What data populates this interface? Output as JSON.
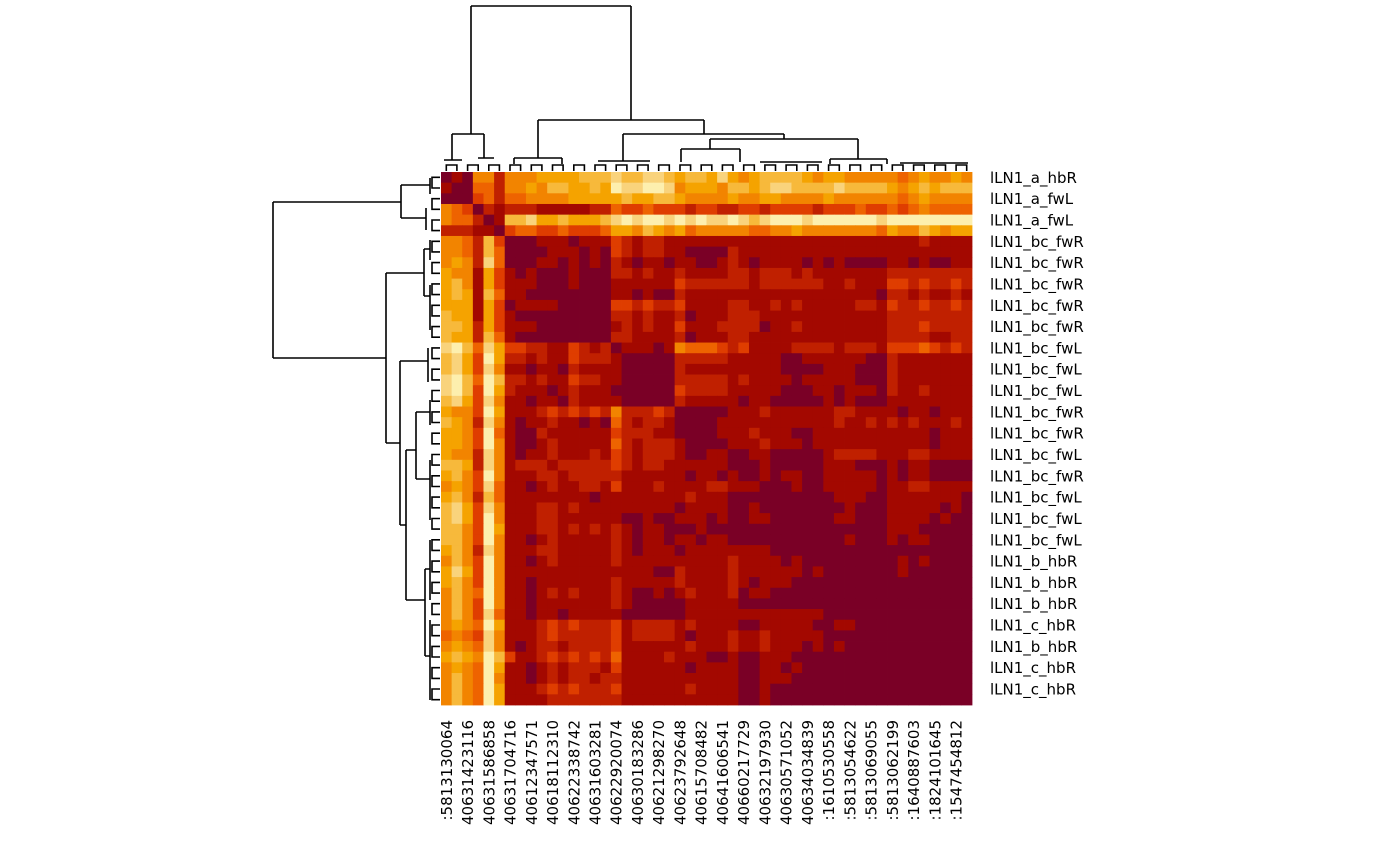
{
  "chart_data": {
    "type": "heatmap",
    "title": "",
    "row_labels": [
      "lLN1_a_hbR",
      "lLN1_a_fwL",
      "lLN1_a_fwL",
      "lLN1_bc_fwR",
      "lLN1_bc_fwR",
      "lLN1_bc_fwR",
      "lLN1_bc_fwR",
      "lLN1_bc_fwR",
      "lLN1_bc_fwL",
      "lLN1_bc_fwL",
      "lLN1_bc_fwL",
      "lLN1_bc_fwR",
      "lLN1_bc_fwR",
      "lLN1_bc_fwL",
      "lLN1_bc_fwR",
      "lLN1_bc_fwL",
      "lLN1_bc_fwL",
      "lLN1_bc_fwL",
      "lLN1_b_hbR",
      "lLN1_b_hbR",
      "lLN1_b_hbR",
      "lLN1_c_hbR",
      "lLN1_b_hbR",
      "lLN1_c_hbR",
      "lLN1_c_hbR"
    ],
    "col_labels": [
      ":5813130064",
      "40631423116",
      "40631586858",
      "40631704716",
      "40612347571",
      "40618112310",
      "40622338742",
      "40631603281",
      "40622920074",
      "40630183286",
      "40621298270",
      "40623792648",
      "40615708482",
      "40641606541",
      "40660217729",
      "40632197930",
      "40630571052",
      "40634034839",
      ":1610530558",
      ":5813054622",
      ":5813069055",
      ":5813062199",
      ":1640887603",
      ":1824101645",
      ":1547454812"
    ],
    "label_every": 2,
    "n_rows": 50,
    "n_cols": 50,
    "value_scale": "0 = darkest (most similar) to 9 = lightest",
    "palette": [
      "#7a0026",
      "#a30800",
      "#c02000",
      "#df3d00",
      "#ee6300",
      "#f28400",
      "#f5a300",
      "#f7b93b",
      "#f9d37c",
      "#fdefae"
    ],
    "levels": [
      "01055255566667778778876776865677776566555554565565",
      "10044255657766769889985666577678877778777765676777",
      "00034244555566666766776555565566555565555554565555",
      "54302122211111224334333233223323333233343343454444",
      "54420177866766678989989898898789998999999899999999",
      "22211034433433346657656455555445565555555465576566",
      "55427300011101113212211111111111111111111111121111",
      "55427400001110103212211000021111111111111111111111",
      "56528400011010102101101100121011110101000011010011",
      "65516310100010002212112111122122212111111122222222",
      "67516311100010001111113222222122222211211133232232",
      "67617411000000001101002111111111111111111022121121",
      "66616301111000003323223111122112121111122132232232",
      "76616310000000002212112011122211111111111122222222",
      "77626311100000001212113111222201121111111122232222",
      "76627410000000002211112011122111111111111122221122",
      "89748633221132120111015444323111122221222133343232",
      "78639622121132221000002222211111001111110021111111",
      "78638511011021111000002111111111000011100021111111",
      "89749722121132211000002222212111101111100021111111",
      "89739621110121110000003222211111000110111021121111",
      "78638511011021111000002111110110000010100011111111",
      "65539611123232325222320000011121111112211110110111",
      "76528510112110104212210000111111111112112121211121",
      "66539410021111113222110000111211100111111111110111",
      "66539510012111114212221000011121110111111111110111",
      "65528510112111213212221001100110000012222111221111",
      "77628512221222223212211111100010000011100010110000",
      "67539511122122222111111011010010110011111010110000",
      "56538411012112213111211112211100010011111011221111",
      "67527411111111011111111211100000000001110011111110",
      "78638511122121111111110111100100000000100011111010",
      "78639511122111111001001110100110000001100011110100",
      "77539611122121212101100010000000000000000011100000",
      "77539511012111112101101101100000000000100010110000",
      "67528511122111112101110111111110000000000000000000",
      "57539511012111112111111111121111010000000001010000",
      "68639511111111111111002111121111110100000001000000",
      "67539511011111112111112111121011100000000000000000",
      "57549511012121112100101211120110000000000000000000",
      "57539511011111112100000111110000000000000000000000",
      "57538411011011111000000111111111111100000000000000",
      "56549611123232223122221211110011111001100000000000",
      "45438511123222223122221011121121111100000000000000",
      "56548510122122223111111211121121110101000000000000",
      "67659731123232324111121110010011100000000000000000",
      "56549611012122213111111011110011010000000000000000",
      "57549511012122122111111111110011100000000000000000",
      "57549611123232223111111211110010000000000000000000",
      "57549611112222222111111111110010000000000000000000"
    ]
  }
}
